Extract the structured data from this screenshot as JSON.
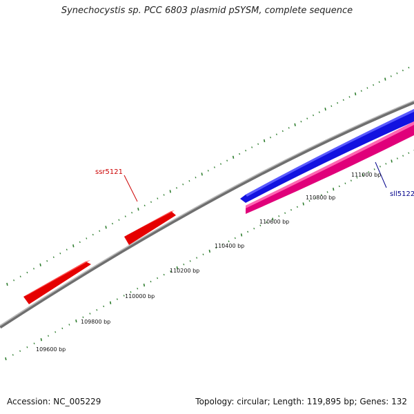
{
  "header": {
    "title": "Synechocystis sp. PCC 6803 plasmid pSYSM, complete sequence"
  },
  "footer": {
    "accession": "Accession: NC_005229",
    "summary": "Topology: circular; Length: 119,895 bp; Genes: 132"
  },
  "map": {
    "backbone_color": "#8c8c8c",
    "tick_color": "#2e7d2e",
    "tick_labels": [
      "109600 bp",
      "109800 bp",
      "110000 bp",
      "110200 bp",
      "110400 bp",
      "110600 bp",
      "110800 bp",
      "111000 bp"
    ],
    "genes": [
      {
        "name": "ssr5121",
        "color": "#ff1a1a",
        "label_color": "#cc0000"
      },
      {
        "name": "sll5122",
        "color": "#1a1aff",
        "label_color": "#00008b"
      }
    ],
    "feature_colors": {
      "plus_strand": "#ff1a1a",
      "minus_strand": "#1a1aff",
      "cds": "#ff3399"
    }
  }
}
